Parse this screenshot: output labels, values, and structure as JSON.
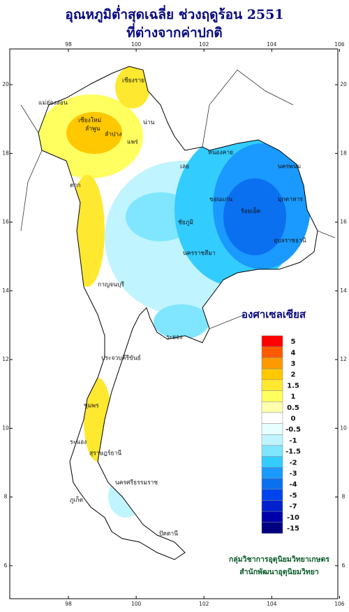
{
  "map": {
    "title": [
      "อุณหภูมิต่ำสุดเฉลี่ย ช่วงฤดูร้อน 2551",
      "ที่ต่างจากค่าปกติ"
    ],
    "xlim": [
      96.27,
      105.95
    ],
    "ylim": [
      5.04,
      21.04
    ],
    "xticks": [
      98,
      100,
      102,
      104,
      106
    ],
    "yticks": [
      6,
      8,
      10,
      12,
      14,
      16,
      18,
      20
    ],
    "legend_title": "องศาเซลเซียส",
    "legend": [
      {
        "label": "5",
        "color": "#ff0000"
      },
      {
        "label": "4",
        "color": "#ff5a00"
      },
      {
        "label": "3",
        "color": "#ff9900"
      },
      {
        "label": "2",
        "color": "#ffc800"
      },
      {
        "label": "1.5",
        "color": "#ffe830"
      },
      {
        "label": "1",
        "color": "#ffff60"
      },
      {
        "label": "0.5",
        "color": "#ffffb0"
      },
      {
        "label": "0",
        "color": "#ffffff"
      },
      {
        "label": "-0.5",
        "color": "#e8ffff"
      },
      {
        "label": "-1",
        "color": "#c0f4ff"
      },
      {
        "label": "-1.5",
        "color": "#80e6ff"
      },
      {
        "label": "-2",
        "color": "#33ccff"
      },
      {
        "label": "-3",
        "color": "#1a99ff"
      },
      {
        "label": "-4",
        "color": "#0a70f0"
      },
      {
        "label": "-5",
        "color": "#0044ee"
      },
      {
        "label": "-7",
        "color": "#0022cc"
      },
      {
        "label": "-10",
        "color": "#0000aa"
      },
      {
        "label": "-15",
        "color": "#000080"
      }
    ],
    "places": [
      "เชียงราย",
      "เชียงใหม่",
      "ลำพูน",
      "ลำปาง",
      "แพร่",
      "น่าน",
      "แม่ฮ่องสอน",
      "ตาก",
      "เลย",
      "หนองคาย",
      "นครพนม",
      "มุกดาหาร",
      "ขอนแก่น",
      "ร้อยเอ็ด",
      "อุบลราชธานี",
      "ชัยภูมิ",
      "นครราชสีมา",
      "กาญจนบุรี",
      "ระยอง",
      "ประจวบคีรีขันธ์",
      "ชุมพร",
      "ระนอง",
      "สุราษฎร์ธานี",
      "นครศรีธรรมราช",
      "ภูเก็ต",
      "ปัตตานี"
    ],
    "credit": [
      "กลุ่มวิชาการอุตุนิยมวิทยาเกษตร",
      "สำนักพัฒนาอุตุนิยมวิทยา"
    ]
  }
}
